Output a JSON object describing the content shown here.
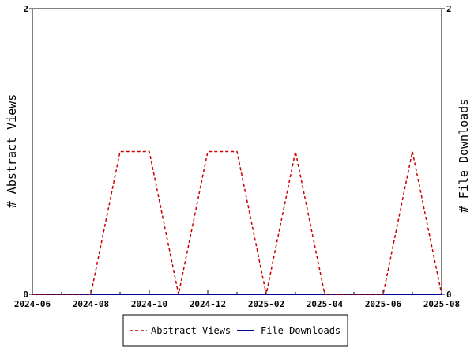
{
  "chart_data": {
    "type": "line",
    "x_ticks": [
      "2024-06",
      "2024-08",
      "2024-10",
      "2024-12",
      "2025-02",
      "2025-04",
      "2025-06",
      "2025-08"
    ],
    "xlim": [
      "2024-06",
      "2025-08"
    ],
    "ylabel_left": "# Abstract Views",
    "ylabel_right": "# File Downloads",
    "y_left_ticks": [
      "0",
      "2"
    ],
    "y_right_ticks": [
      "0",
      "2"
    ],
    "ylim": [
      0,
      2
    ],
    "grid": false,
    "legend_position": "bottom",
    "series": [
      {
        "name": "Abstract Views",
        "color": "#cc0000",
        "style": "dashed",
        "axis": "left",
        "points": [
          [
            "2024-06-01",
            0
          ],
          [
            "2024-07-01",
            0
          ],
          [
            "2024-08-01",
            0
          ],
          [
            "2024-09-01",
            1
          ],
          [
            "2024-10-01",
            1
          ],
          [
            "2024-11-01",
            0
          ],
          [
            "2024-12-01",
            1
          ],
          [
            "2025-01-01",
            1
          ],
          [
            "2025-02-01",
            0
          ],
          [
            "2025-03-01",
            1
          ],
          [
            "2025-04-01",
            0
          ],
          [
            "2025-05-01",
            0
          ],
          [
            "2025-06-01",
            0
          ],
          [
            "2025-07-01",
            1
          ],
          [
            "2025-08-01",
            0
          ]
        ]
      },
      {
        "name": "File Downloads",
        "color": "#000099",
        "style": "solid",
        "axis": "right",
        "points": [
          [
            "2024-06-01",
            0
          ],
          [
            "2024-07-01",
            0
          ],
          [
            "2024-08-01",
            0
          ],
          [
            "2024-09-01",
            0
          ],
          [
            "2024-10-01",
            0
          ],
          [
            "2024-11-01",
            0
          ],
          [
            "2024-12-01",
            0
          ],
          [
            "2025-01-01",
            0
          ],
          [
            "2025-02-01",
            0
          ],
          [
            "2025-03-01",
            0
          ],
          [
            "2025-04-01",
            0
          ],
          [
            "2025-05-01",
            0
          ],
          [
            "2025-06-01",
            0
          ],
          [
            "2025-07-01",
            0
          ],
          [
            "2025-08-01",
            0
          ]
        ]
      }
    ]
  }
}
